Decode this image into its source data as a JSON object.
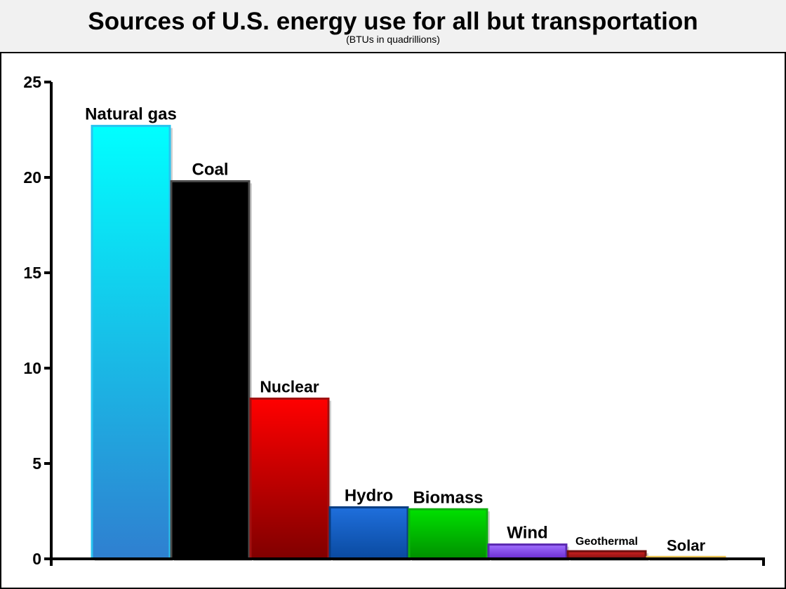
{
  "chart_data": {
    "type": "bar",
    "title": "Sources of U.S. energy use for all but transportation",
    "subtitle": "(BTUs in quadrillions)",
    "xlabel": "",
    "ylabel": "",
    "ylim": [
      0,
      25
    ],
    "yticks": [
      "0",
      "5",
      "10",
      "15",
      "20",
      "25"
    ],
    "grid": false,
    "categories": [
      "Natural gas",
      "Coal",
      "Nuclear",
      "Hydro",
      "Biomass",
      "Wind",
      "Geothermal",
      "Solar"
    ],
    "values": [
      22.7,
      19.8,
      8.4,
      2.7,
      2.6,
      0.75,
      0.4,
      0.1
    ],
    "colors": [
      {
        "top": "#00ffff",
        "bottom": "#2f7fd0",
        "border": "#29c4f0"
      },
      {
        "top": "#000000",
        "bottom": "#000000",
        "border": "#4a4a4a"
      },
      {
        "top": "#ff0000",
        "bottom": "#800000",
        "border": "#a01010"
      },
      {
        "top": "#1f6fdc",
        "bottom": "#0a4aa0",
        "border": "#0a3d82"
      },
      {
        "top": "#00e000",
        "bottom": "#009000",
        "border": "#10b010"
      },
      {
        "top": "#a070ff",
        "bottom": "#6a2ad0",
        "border": "#5a28b0"
      },
      {
        "top": "#d02020",
        "bottom": "#801010",
        "border": "#701010"
      },
      {
        "top": "#ffe680",
        "bottom": "#f0c040",
        "border": "#e8c050"
      }
    ]
  }
}
